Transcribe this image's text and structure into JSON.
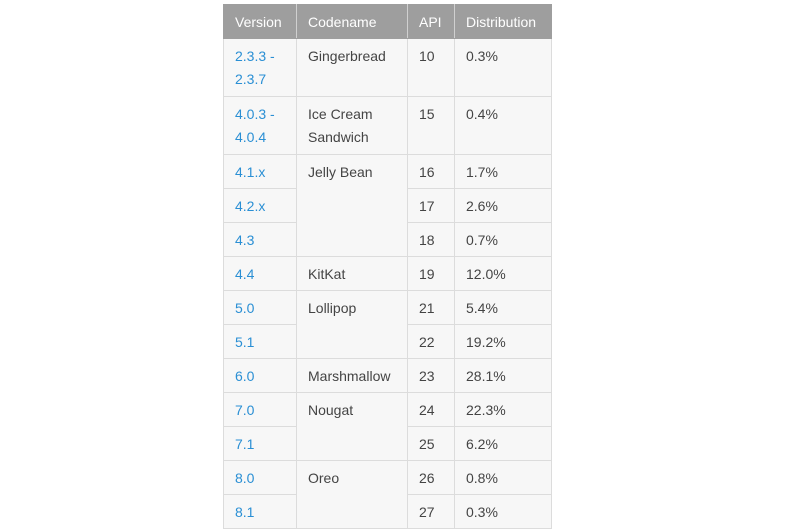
{
  "table": {
    "headers": [
      "Version",
      "Codename",
      "API",
      "Distribution"
    ],
    "rows": [
      {
        "version": [
          "2.3.3 -",
          "2.3.7"
        ],
        "codename": [
          "Gingerbread"
        ],
        "api": "10",
        "distribution": "0.3%"
      },
      {
        "version": [
          "4.0.3 -",
          "4.0.4"
        ],
        "codename": [
          "Ice Cream",
          "Sandwich"
        ],
        "api": "15",
        "distribution": "0.4%"
      },
      {
        "version": [
          "4.1.x"
        ],
        "codename": [
          "Jelly Bean"
        ],
        "api": "16",
        "distribution": "1.7%"
      },
      {
        "version": [
          "4.2.x"
        ],
        "codename": null,
        "api": "17",
        "distribution": "2.6%"
      },
      {
        "version": [
          "4.3"
        ],
        "codename": null,
        "api": "18",
        "distribution": "0.7%"
      },
      {
        "version": [
          "4.4"
        ],
        "codename": [
          "KitKat"
        ],
        "api": "19",
        "distribution": "12.0%"
      },
      {
        "version": [
          "5.0"
        ],
        "codename": [
          "Lollipop"
        ],
        "api": "21",
        "distribution": "5.4%"
      },
      {
        "version": [
          "5.1"
        ],
        "codename": null,
        "api": "22",
        "distribution": "19.2%"
      },
      {
        "version": [
          "6.0"
        ],
        "codename": [
          "Marshmallow"
        ],
        "api": "23",
        "distribution": "28.1%"
      },
      {
        "version": [
          "7.0"
        ],
        "codename": [
          "Nougat"
        ],
        "api": "24",
        "distribution": "22.3%"
      },
      {
        "version": [
          "7.1"
        ],
        "codename": null,
        "api": "25",
        "distribution": "6.2%"
      },
      {
        "version": [
          "8.0"
        ],
        "codename": [
          "Oreo"
        ],
        "api": "26",
        "distribution": "0.8%"
      },
      {
        "version": [
          "8.1"
        ],
        "codename": null,
        "api": "27",
        "distribution": "0.3%"
      }
    ]
  },
  "colors": {
    "header_bg": "#9e9e9e",
    "header_text": "#ffffff",
    "cell_bg": "#f7f7f7",
    "link_text": "#2a8fd4",
    "body_text": "#444444"
  }
}
